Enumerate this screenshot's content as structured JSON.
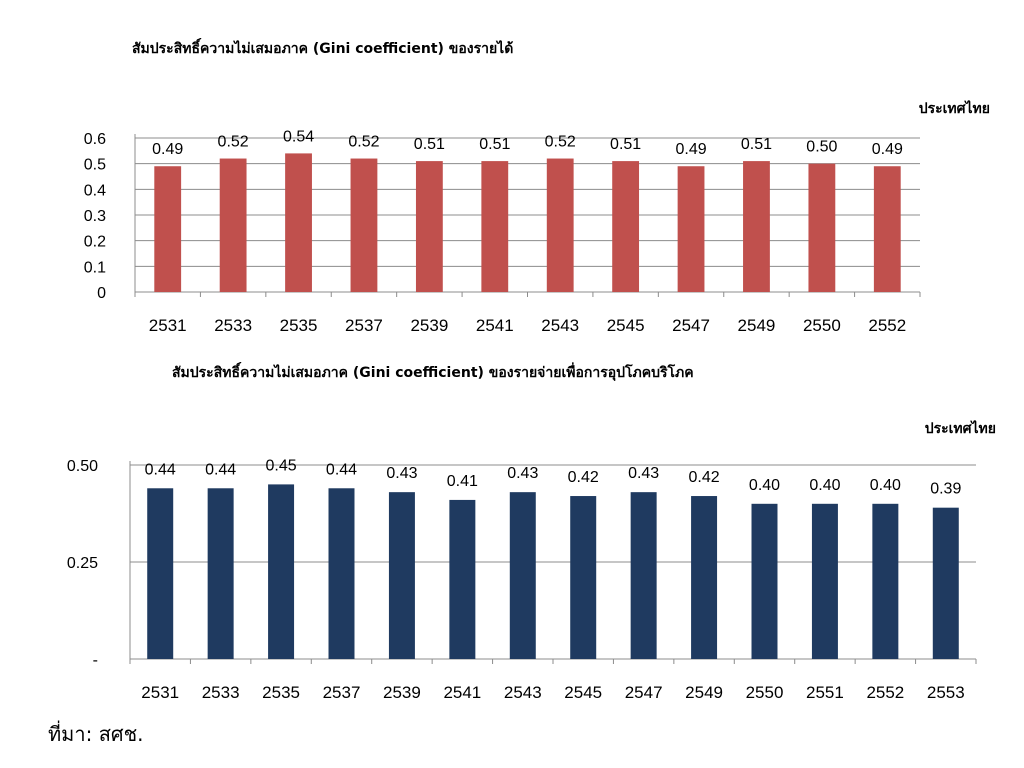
{
  "chart_data": [
    {
      "type": "bar",
      "title": "สัมประสิทธิ์ความไม่เสมอภาค (Gini coefficient) ของรายได้",
      "corner_label": "ประเทศไทย",
      "categories": [
        "2531",
        "2533",
        "2535",
        "2537",
        "2539",
        "2541",
        "2543",
        "2545",
        "2547",
        "2549",
        "2550",
        "2552"
      ],
      "values": [
        0.49,
        0.52,
        0.54,
        0.52,
        0.51,
        0.51,
        0.52,
        0.51,
        0.49,
        0.51,
        0.5,
        0.49
      ],
      "value_labels": [
        "0.49",
        "0.52",
        "0.54",
        "0.52",
        "0.51",
        "0.51",
        "0.52",
        "0.51",
        "0.49",
        "0.51",
        "0.50",
        "0.49"
      ],
      "ylim": [
        0,
        0.6
      ],
      "yticks": [
        0,
        0.1,
        0.2,
        0.3,
        0.4,
        0.5,
        0.6
      ],
      "ytick_labels": [
        "0",
        "0.1",
        "0.2",
        "0.3",
        "0.4",
        "0.5",
        "0.6"
      ],
      "grid": true,
      "bar_color": "#c0504d"
    },
    {
      "type": "bar",
      "title": "สัมประสิทธิ์ความไม่เสมอภาค (Gini coefficient) ของรายจ่ายเพื่อการอุปโภคบริโภค",
      "corner_label": "ประเทศไทย",
      "categories": [
        "2531",
        "2533",
        "2535",
        "2537",
        "2539",
        "2541",
        "2543",
        "2545",
        "2547",
        "2549",
        "2550",
        "2551",
        "2552",
        "2553"
      ],
      "values": [
        0.44,
        0.44,
        0.45,
        0.44,
        0.43,
        0.41,
        0.43,
        0.42,
        0.43,
        0.42,
        0.4,
        0.4,
        0.4,
        0.39
      ],
      "value_labels": [
        "0.44",
        "0.44",
        "0.45",
        "0.44",
        "0.43",
        "0.41",
        "0.43",
        "0.42",
        "0.43",
        "0.42",
        "0.40",
        "0.40",
        "0.40",
        "0.39"
      ],
      "ylim": [
        0,
        0.5
      ],
      "yticks": [
        0,
        0.25,
        0.5
      ],
      "ytick_labels": [
        "-",
        "0.25",
        "0.50"
      ],
      "grid": true,
      "bar_color": "#1f3a60"
    }
  ],
  "source_note": "ที่มา: สศช."
}
